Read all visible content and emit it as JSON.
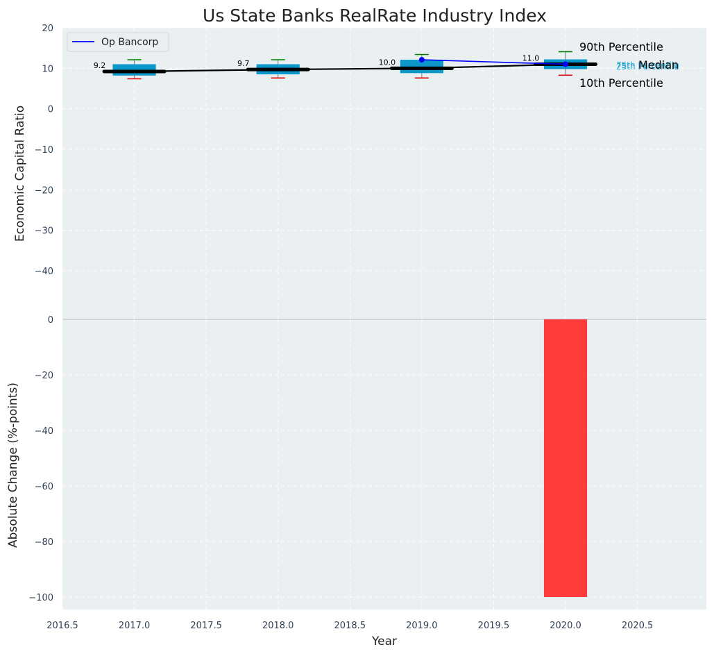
{
  "chart_data": [
    {
      "type": "box",
      "title": "Us State Banks RealRate Industry Index",
      "ylabel": "Economic Capital Ratio",
      "ylim": [
        -52,
        20
      ],
      "yticks": [
        20,
        10,
        0,
        -10,
        -20,
        -30,
        -40
      ],
      "xlim": [
        2016.5,
        2020.98
      ],
      "grid": true,
      "legend_position": "top-left",
      "legend": [
        {
          "name": "Op Bancorp",
          "color": "#0000ff"
        }
      ],
      "annotations": [
        "90th Percentile",
        "Median",
        "10th Percentile",
        "75th Percentile",
        "25th Percentile"
      ],
      "boxes": [
        {
          "x": 2017,
          "p10": 7.4,
          "p25": 8.2,
          "median": 9.2,
          "p75": 11.0,
          "p90": 12.1,
          "label": "9.2"
        },
        {
          "x": 2018,
          "p10": 7.6,
          "p25": 8.5,
          "median": 9.7,
          "p75": 11.0,
          "p90": 12.1,
          "label": "9.7"
        },
        {
          "x": 2019,
          "p10": 7.6,
          "p25": 8.8,
          "median": 10.0,
          "p75": 12.1,
          "p90": 13.4,
          "label": "10.0"
        },
        {
          "x": 2020,
          "p10": 8.3,
          "p25": 9.8,
          "median": 11.0,
          "p75": 12.2,
          "p90": 14.1,
          "label": "11.0"
        }
      ],
      "median_line": {
        "x": [
          2017,
          2018,
          2019,
          2020
        ],
        "y": [
          9.2,
          9.7,
          10.0,
          11.0
        ],
        "color": "#000000"
      },
      "series": [
        {
          "name": "Op Bancorp",
          "x": [
            2019,
            2020
          ],
          "y": [
            12.1,
            11.0
          ],
          "color": "#0000ff"
        }
      ]
    },
    {
      "type": "bar",
      "xlabel": "Year",
      "ylabel": "Absolute Change (%-points)",
      "ylim": [
        -104.5,
        0
      ],
      "yticks": [
        0,
        -20,
        -40,
        -60,
        -80,
        -100
      ],
      "xlim": [
        2016.5,
        2020.98
      ],
      "xticks": [
        "2016.5",
        "2017.0",
        "2017.5",
        "2018.0",
        "2018.5",
        "2019.0",
        "2019.5",
        "2020.0",
        "2020.5"
      ],
      "grid": true,
      "bars": [
        {
          "x": 2020,
          "value": -100,
          "color": "#ff3c3c"
        }
      ]
    }
  ]
}
